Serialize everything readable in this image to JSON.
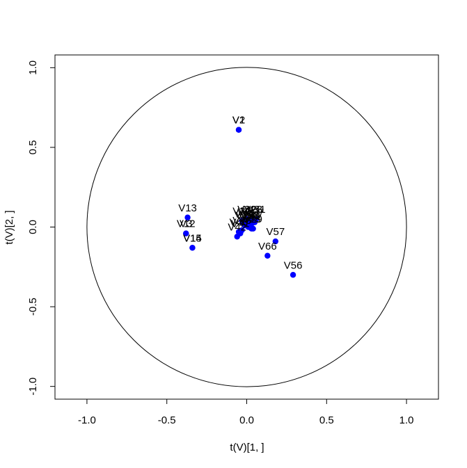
{
  "chart_data": {
    "type": "scatter",
    "title": "",
    "xlabel": "t(V)[1, ]",
    "ylabel": "t(V)[2, ]",
    "xlim": [
      -1.2,
      1.2
    ],
    "ylim": [
      -1.08,
      1.08
    ],
    "xticks": [
      -1.0,
      -0.5,
      0.0,
      0.5,
      1.0
    ],
    "xtick_labels": [
      "-1.0",
      "-0.5",
      "0.0",
      "0.5",
      "1.0"
    ],
    "yticks": [
      -1.0,
      -0.5,
      0.0,
      0.5,
      1.0
    ],
    "ytick_labels": [
      "-1.0",
      "-0.5",
      "0.0",
      "0.5",
      "1.0"
    ],
    "unit_circle": true,
    "point_color": "#0000ff",
    "points": [
      {
        "label": "V1",
        "x": -0.05,
        "y": 0.61
      },
      {
        "label": "V2",
        "x": -0.05,
        "y": 0.61
      },
      {
        "label": "V13",
        "x": -0.37,
        "y": 0.06
      },
      {
        "label": "V12",
        "x": -0.38,
        "y": -0.04
      },
      {
        "label": "V3",
        "x": -0.38,
        "y": -0.04
      },
      {
        "label": "V14",
        "x": -0.34,
        "y": -0.13
      },
      {
        "label": "V15",
        "x": -0.34,
        "y": -0.13
      },
      {
        "label": "V57",
        "x": 0.18,
        "y": -0.09
      },
      {
        "label": "V66",
        "x": 0.13,
        "y": -0.18
      },
      {
        "label": "V56",
        "x": 0.29,
        "y": -0.3
      },
      {
        "label": "V40",
        "x": -0.05,
        "y": -0.03
      },
      {
        "label": "V41",
        "x": -0.04,
        "y": -0.04
      },
      {
        "label": "V42",
        "x": -0.06,
        "y": -0.06
      },
      {
        "label": "V43",
        "x": -0.03,
        "y": -0.02
      },
      {
        "label": "V20",
        "x": -0.02,
        "y": 0.02
      },
      {
        "label": "V21",
        "x": 0.0,
        "y": 0.03
      },
      {
        "label": "V22",
        "x": 0.02,
        "y": 0.04
      },
      {
        "label": "V23",
        "x": 0.04,
        "y": 0.05
      },
      {
        "label": "V24",
        "x": 0.03,
        "y": 0.02
      },
      {
        "label": "V25",
        "x": 0.01,
        "y": 0.0
      },
      {
        "label": "V26",
        "x": -0.01,
        "y": 0.01
      },
      {
        "label": "V27",
        "x": 0.05,
        "y": 0.03
      },
      {
        "label": "V28",
        "x": 0.03,
        "y": -0.01
      },
      {
        "label": "V29",
        "x": 0.04,
        "y": -0.01
      },
      {
        "label": "V30",
        "x": -0.03,
        "y": 0.04
      },
      {
        "label": "V31",
        "x": 0.06,
        "y": 0.05
      },
      {
        "label": "V32",
        "x": 0.0,
        "y": 0.05
      },
      {
        "label": "V33",
        "x": 0.02,
        "y": 0.01
      }
    ]
  }
}
